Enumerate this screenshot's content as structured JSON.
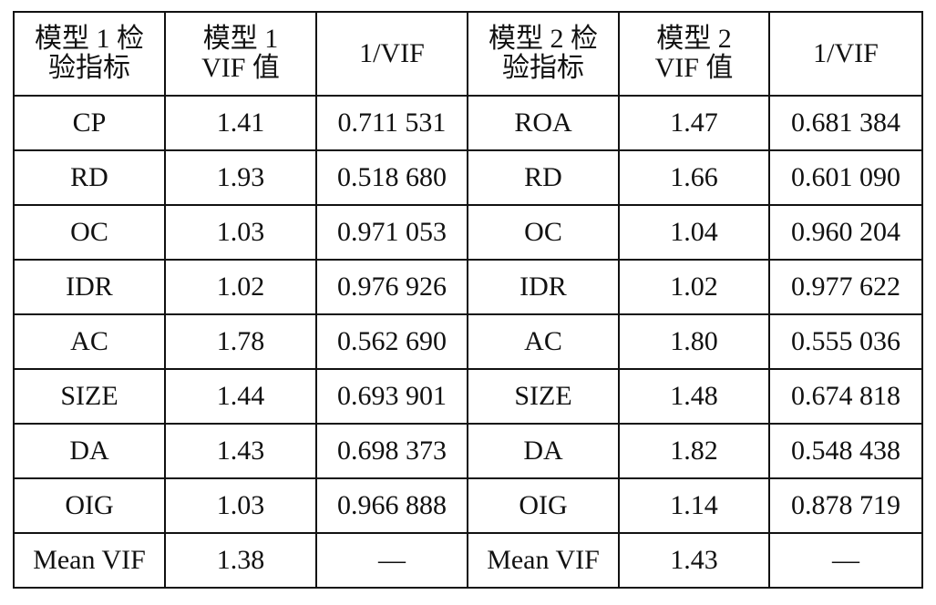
{
  "table": {
    "header": [
      [
        "模型 1 检",
        "验指标"
      ],
      [
        "模型 1",
        "VIF 值"
      ],
      [
        "1/VIF"
      ],
      [
        "模型 2 检",
        "验指标"
      ],
      [
        "模型 2",
        "VIF 值"
      ],
      [
        "1/VIF"
      ]
    ],
    "rows": [
      [
        "CP",
        "1.41",
        "0.711 531",
        "ROA",
        "1.47",
        "0.681 384"
      ],
      [
        "RD",
        "1.93",
        "0.518 680",
        "RD",
        "1.66",
        "0.601 090"
      ],
      [
        "OC",
        "1.03",
        "0.971 053",
        "OC",
        "1.04",
        "0.960 204"
      ],
      [
        "IDR",
        "1.02",
        "0.976 926",
        "IDR",
        "1.02",
        "0.977 622"
      ],
      [
        "AC",
        "1.78",
        "0.562 690",
        "AC",
        "1.80",
        "0.555 036"
      ],
      [
        "SIZE",
        "1.44",
        "0.693 901",
        "SIZE",
        "1.48",
        "0.674 818"
      ],
      [
        "DA",
        "1.43",
        "0.698 373",
        "DA",
        "1.82",
        "0.548 438"
      ],
      [
        "OIG",
        "1.03",
        "0.966 888",
        "OIG",
        "1.14",
        "0.878 719"
      ],
      [
        "Mean VIF",
        "1.38",
        "—",
        "Mean VIF",
        "1.43",
        "—"
      ]
    ]
  }
}
